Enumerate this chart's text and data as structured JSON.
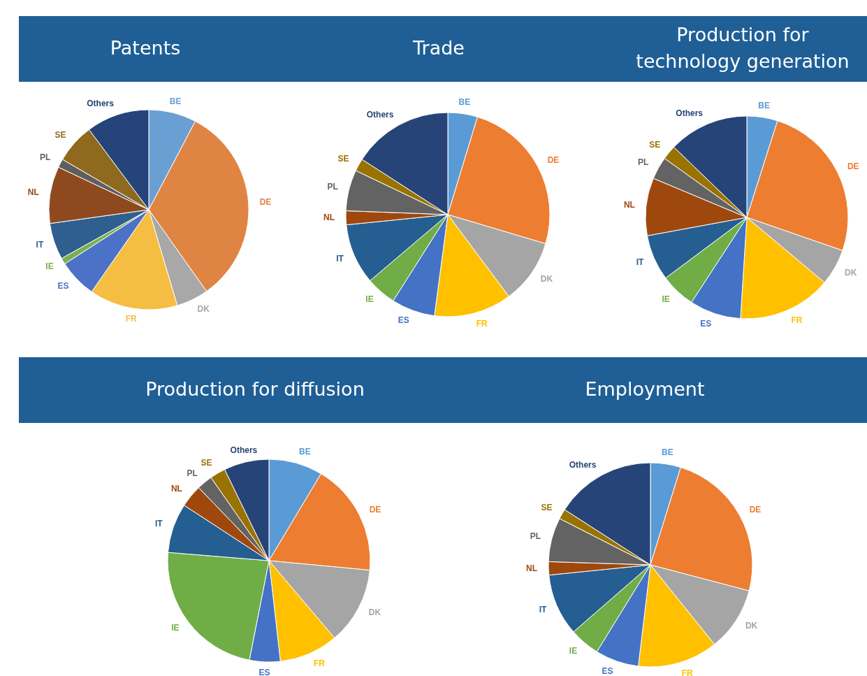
{
  "chart_data": [
    {
      "type": "pie",
      "title": "Patents",
      "categories": [
        "BE",
        "DE",
        "DK",
        "FR",
        "ES",
        "IE",
        "IT",
        "NL",
        "PL",
        "SE",
        "Others"
      ],
      "values": [
        7.7,
        32.5,
        5.2,
        14.3,
        6.2,
        1.0,
        5.9,
        9.2,
        1.4,
        6.4,
        10.2
      ],
      "colors": [
        "#6a9fd4",
        "#e08444",
        "#a8a8a8",
        "#f5bd42",
        "#4b72c6",
        "#7ab050",
        "#2f5f8f",
        "#8e4a1e",
        "#5e5e5e",
        "#8f6a1e",
        "#25447a"
      ]
    },
    {
      "type": "pie",
      "title": "Trade",
      "categories": [
        "BE",
        "DE",
        "DK",
        "FR",
        "ES",
        "IE",
        "IT",
        "NL",
        "PL",
        "SE",
        "Others"
      ],
      "values": [
        4.7,
        24.9,
        10.2,
        12.3,
        6.9,
        4.8,
        9.6,
        2.2,
        6.5,
        2.0,
        15.9
      ],
      "colors": [
        "#5b9bd5",
        "#ed7d31",
        "#a5a5a5",
        "#ffc000",
        "#4472c4",
        "#70ad47",
        "#255e91",
        "#9e480e",
        "#636363",
        "#997300",
        "#264478"
      ]
    },
    {
      "type": "pie",
      "title": "Production for technology generation",
      "categories": [
        "BE",
        "DE",
        "DK",
        "FR",
        "ES",
        "IE",
        "IT",
        "NL",
        "PL",
        "SE",
        "Others"
      ],
      "values": [
        4.9,
        25.4,
        5.8,
        14.9,
        8.2,
        5.6,
        7.3,
        9.2,
        3.6,
        2.3,
        12.8
      ],
      "colors": [
        "#5b9bd5",
        "#ed7d31",
        "#a5a5a5",
        "#ffc000",
        "#4472c4",
        "#70ad47",
        "#255e91",
        "#9e480e",
        "#636363",
        "#997300",
        "#264478"
      ]
    },
    {
      "type": "pie",
      "title": "Production for diffusion",
      "categories": [
        "BE",
        "DE",
        "DK",
        "FR",
        "ES",
        "IE",
        "IT",
        "NL",
        "PL",
        "SE",
        "Others"
      ],
      "values": [
        8.6,
        17.9,
        12.3,
        9.4,
        4.9,
        23.2,
        7.9,
        3.6,
        2.5,
        2.5,
        7.2
      ],
      "colors": [
        "#5b9bd5",
        "#ed7d31",
        "#a5a5a5",
        "#ffc000",
        "#4472c4",
        "#70ad47",
        "#255e91",
        "#9e480e",
        "#636363",
        "#997300",
        "#264478"
      ]
    },
    {
      "type": "pie",
      "title": "Employment",
      "categories": [
        "BE",
        "DE",
        "DK",
        "FR",
        "ES",
        "IE",
        "IT",
        "NL",
        "PL",
        "SE",
        "Others"
      ],
      "values": [
        4.8,
        24.3,
        10.1,
        12.7,
        6.9,
        4.8,
        9.8,
        2.1,
        7.0,
        1.6,
        15.9
      ],
      "colors": [
        "#5b9bd5",
        "#ed7d31",
        "#a5a5a5",
        "#ffc000",
        "#4472c4",
        "#70ad47",
        "#255e91",
        "#9e480e",
        "#636363",
        "#997300",
        "#264478"
      ]
    }
  ]
}
